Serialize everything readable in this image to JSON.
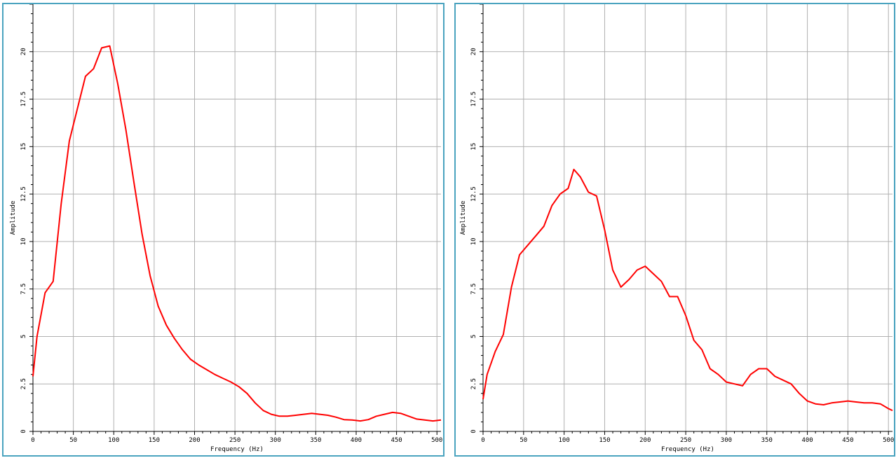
{
  "chart_data": [
    {
      "type": "line",
      "xlabel": "Frequency (Hz)",
      "ylabel": "Amplitude",
      "xlim": [
        0,
        505
      ],
      "ylim": [
        0,
        22.5
      ],
      "xticks": [
        "0",
        "50",
        "100",
        "150",
        "200",
        "250",
        "300",
        "350",
        "400",
        "450",
        "500"
      ],
      "yticks": [
        "0",
        "2.5",
        "5",
        "7.5",
        "10",
        "12.5",
        "15",
        "17.5",
        "20"
      ],
      "grid": true,
      "series": [
        {
          "color": "#ff0000",
          "x": [
            0,
            5,
            15,
            25,
            35,
            45,
            55,
            65,
            75,
            85,
            95,
            105,
            115,
            125,
            135,
            145,
            155,
            165,
            175,
            185,
            195,
            205,
            215,
            225,
            235,
            245,
            255,
            265,
            275,
            285,
            295,
            305,
            315,
            325,
            335,
            345,
            355,
            365,
            375,
            385,
            395,
            405,
            415,
            425,
            435,
            445,
            455,
            465,
            475,
            485,
            495,
            505
          ],
          "y": [
            2.9,
            5.0,
            7.3,
            7.9,
            12.0,
            15.3,
            17.0,
            18.7,
            19.1,
            20.2,
            20.3,
            18.3,
            15.9,
            13.1,
            10.4,
            8.2,
            6.6,
            5.6,
            4.9,
            4.3,
            3.8,
            3.5,
            3.25,
            3.0,
            2.8,
            2.6,
            2.35,
            2.0,
            1.5,
            1.1,
            0.9,
            0.8,
            0.8,
            0.85,
            0.9,
            0.95,
            0.9,
            0.85,
            0.75,
            0.62,
            0.6,
            0.55,
            0.62,
            0.8,
            0.9,
            1.0,
            0.95,
            0.8,
            0.65,
            0.6,
            0.55,
            0.6
          ]
        }
      ]
    },
    {
      "type": "line",
      "xlabel": "Frequency (Hz)",
      "ylabel": "Amplitude",
      "xlim": [
        0,
        505
      ],
      "ylim": [
        0,
        22.5
      ],
      "xticks": [
        "0",
        "50",
        "100",
        "150",
        "200",
        "250",
        "300",
        "350",
        "400",
        "450",
        "500"
      ],
      "yticks": [
        "0",
        "2.5",
        "5",
        "7.5",
        "10",
        "12.5",
        "15",
        "17.5",
        "20"
      ],
      "grid": true,
      "series": [
        {
          "color": "#ff0000",
          "x": [
            0,
            5,
            15,
            25,
            35,
            45,
            55,
            65,
            75,
            85,
            95,
            105,
            112,
            120,
            130,
            140,
            150,
            160,
            170,
            180,
            190,
            200,
            210,
            220,
            230,
            240,
            250,
            260,
            270,
            280,
            290,
            300,
            310,
            320,
            330,
            340,
            350,
            360,
            370,
            380,
            390,
            400,
            410,
            420,
            430,
            440,
            450,
            460,
            470,
            480,
            490,
            500,
            505
          ],
          "y": [
            1.7,
            3.0,
            4.2,
            5.1,
            7.6,
            9.3,
            9.8,
            10.3,
            10.8,
            11.9,
            12.5,
            12.8,
            13.8,
            13.4,
            12.6,
            12.4,
            10.6,
            8.5,
            7.6,
            8.0,
            8.5,
            8.7,
            8.3,
            7.9,
            7.1,
            7.1,
            6.1,
            4.8,
            4.3,
            3.3,
            3.0,
            2.6,
            2.5,
            2.4,
            3.0,
            3.3,
            3.3,
            2.9,
            2.7,
            2.5,
            2.0,
            1.6,
            1.45,
            1.4,
            1.5,
            1.55,
            1.6,
            1.55,
            1.5,
            1.5,
            1.45,
            1.2,
            1.1
          ]
        }
      ]
    }
  ]
}
